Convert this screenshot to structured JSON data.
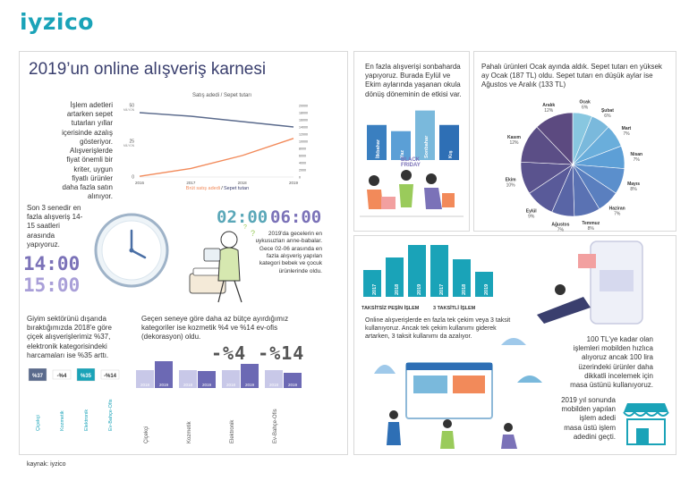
{
  "brand": "iyzico",
  "title": "2019’un online alışveriş karnesi",
  "colors": {
    "teal": "#1aa3b8",
    "navy": "#3a3f6e",
    "slate": "#5a6a8c",
    "peach": "#f28a5a",
    "purple": "#7b72b8",
    "lavender": "#b8b3e0",
    "steel": "#4a6fa5"
  },
  "line_intro": "İşlem adetleri artarken sepet tutarları yıllar içerisinde azalış gösteriyor. Alışverişlerde fiyat önemli bir kriter, uygun fiyatlı ürünler daha fazla satın alınıyor.",
  "time_text": "Son 3 senedir en fazla alışveriş 14-15 saatleri arasında yapıyoruz.",
  "time_start": "14:00",
  "time_end": "15:00",
  "night_start": "02:00",
  "night_end": "06:00",
  "night_text": "2019'da gecelerin en uykusuzları anne-babalar. Gece 02-06 arasında en fazla alışveriş yapılan kategori bebek ve çocuk ürünlerinde oldu.",
  "cat_text": "Giyim sektörünü dışarıda bıraktığımızda 2018'e göre çiçek alışverişlerimiz %37, elektronik kategorisindeki harcamaları ise %35 arttı.",
  "cat2_text": "Geçen seneye göre daha az bütçe ayırdığımız kategoriler ise kozmetik %4 ve %14 ev-ofis (dekorasyon) oldu.",
  "cat2_big": "-%4 -%14",
  "season_text": "En fazla alışverişi sonbaharda yapıyoruz. Burada Eylül ve Ekim aylarında yaşanan okula dönüş döneminin de etkisi var.",
  "black_friday": "BLACK FRIDAY",
  "pie_text": "Pahalı ürünleri Ocak ayında aldık. Sepet tutarı en yüksek ay Ocak (187 TL) oldu. Sepet tutarı en düşük aylar ise Ağustos ve Aralık (133 TL)",
  "install_text": "Online alışverişlerde en fazla tek çekim veya 3 taksit kullanıyoruz. Ancak tek çekim kullanımı giderek artarken, 3 taksit kullanımı da azalıyor.",
  "mobile_text": "100 TL'ye kadar olan işlemleri mobilden hızlıca alıyoruz ancak 100 lira üzerindeki ürünler daha dikkatli incelemek için masa üstünü kullanıyoruz.",
  "mobile2_text": "2019 yıl sonunda mobilden yapılan işlem adedi masa üstü işlem adedini geçti.",
  "source": "kaynak: iyzico",
  "chart_data": [
    {
      "type": "line",
      "title": "Satış adedi / Sepet tutarı",
      "x": [
        "2016",
        "2017",
        "2018",
        "2019"
      ],
      "y_left_ticks": [
        "0",
        "25",
        "50"
      ],
      "y_left_unit": "MİLYON",
      "y_right_ticks": [
        "0",
        "2000",
        "4000",
        "6000",
        "8000",
        "10000",
        "12000",
        "14000",
        "16000",
        "18000",
        "20000"
      ],
      "series": [
        {
          "name": "Brüt satış adedi",
          "color": "#f28a5a",
          "values": [
            0.5,
            6,
            15,
            27
          ]
        },
        {
          "name": "Sepet tutarı",
          "color": "#5a6a8c",
          "values": [
            18000,
            17000,
            15500,
            14000
          ]
        }
      ],
      "legend_a": "Brüt satış adedi",
      "legend_sep": " / ",
      "legend_b": "Sepet tutarı"
    },
    {
      "type": "bar",
      "categories": [
        "Çiçekçi",
        "Kozmetik",
        "Elektronik",
        "Ev-Bahçe-Ofis"
      ],
      "labels": [
        "%37",
        "-%4",
        "%35",
        "-%14"
      ],
      "values": [
        37,
        -4,
        35,
        -14
      ]
    },
    {
      "type": "bar",
      "categories": [
        "Çiçekçi",
        "Kozmetik",
        "Elektronik",
        "Ev-Bahçe-Ofis"
      ],
      "series": [
        {
          "name": "2018",
          "values": [
            20,
            20,
            20,
            20
          ]
        },
        {
          "name": "2019",
          "values": [
            30,
            19,
            27,
            17
          ]
        }
      ],
      "tick": [
        "2018",
        "2019"
      ]
    },
    {
      "type": "bar",
      "categories": [
        "İlkbahar",
        "Yaz",
        "Sonbahar",
        "Kış"
      ],
      "values": [
        17,
        14,
        24,
        17
      ]
    },
    {
      "type": "pie",
      "slices": [
        {
          "label": "Ocak",
          "pct": "6%",
          "color": "#88c7e0"
        },
        {
          "label": "Şubat",
          "pct": "6%",
          "color": "#7ab9dc"
        },
        {
          "label": "Mart",
          "pct": "7%",
          "color": "#6aaedb"
        },
        {
          "label": "Nisan",
          "pct": "7%",
          "color": "#5d9fd6"
        },
        {
          "label": "Mayıs",
          "pct": "8%",
          "color": "#5b8fcc"
        },
        {
          "label": "Haziran",
          "pct": "7%",
          "color": "#5a7fbf"
        },
        {
          "label": "Temmuz",
          "pct": "8%",
          "color": "#5a72b3"
        },
        {
          "label": "Ağustos",
          "pct": "7%",
          "color": "#5965a6"
        },
        {
          "label": "Eylül",
          "pct": "9%",
          "color": "#595a99"
        },
        {
          "label": "Ekim",
          "pct": "10%",
          "color": "#5a538e"
        },
        {
          "label": "Kasım",
          "pct": "12%",
          "color": "#5b4e86"
        },
        {
          "label": "Aralık",
          "pct": "12%",
          "color": "#5c4a80"
        }
      ]
    },
    {
      "type": "bar",
      "categories": [
        "2017",
        "2018",
        "2019",
        "2017",
        "2018",
        "2019"
      ],
      "values": [
        30,
        44,
        58,
        58,
        42,
        28
      ],
      "groups": [
        "TAKSİTSİZ PEŞİN İŞLEM",
        "3 TAKSİTLİ İŞLEM"
      ]
    }
  ]
}
